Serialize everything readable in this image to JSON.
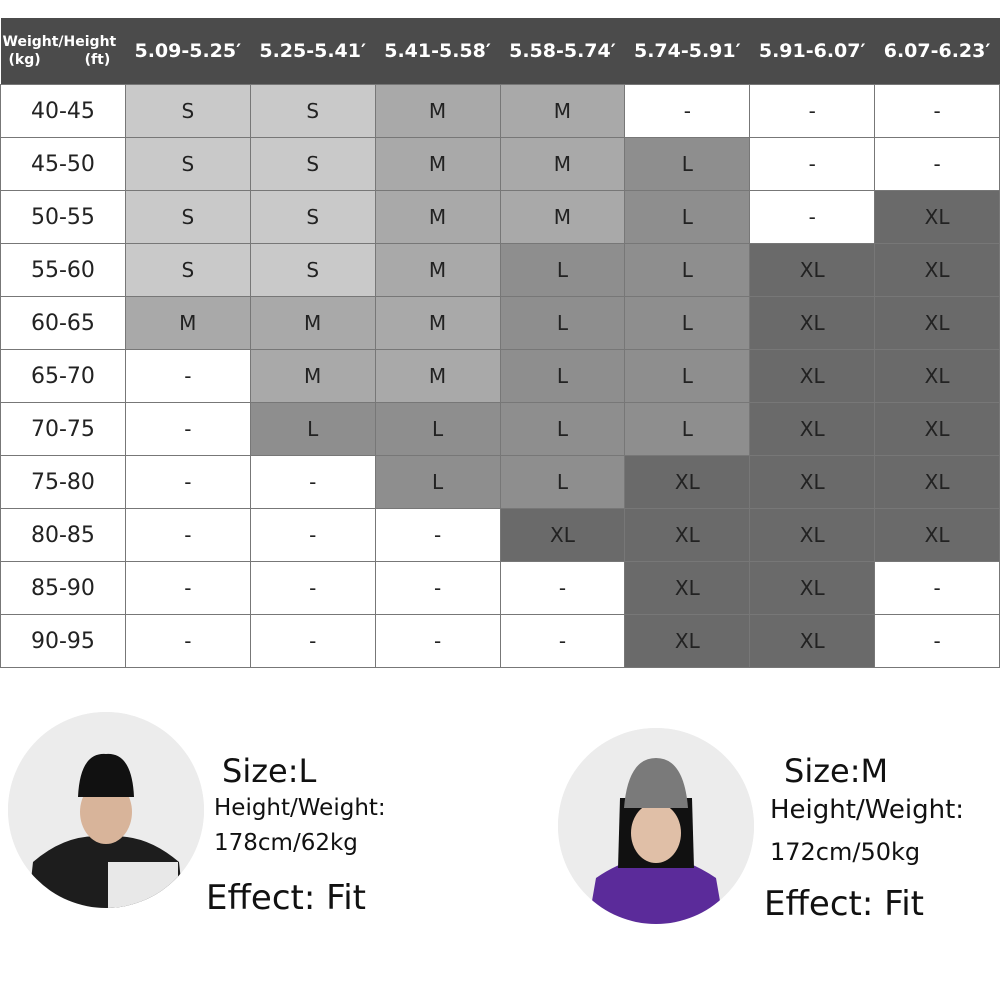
{
  "table": {
    "corner_top": "Weight/Height",
    "corner_kg": "(kg)",
    "corner_ft": "(ft)",
    "heights": [
      "5.09-5.25′",
      "5.25-5.41′",
      "5.41-5.58′",
      "5.58-5.74′",
      "5.74-5.91′",
      "5.91-6.07′",
      "6.07-6.23′"
    ],
    "rows": [
      {
        "weight": "40-45",
        "sizes": [
          "S",
          "S",
          "M",
          "M",
          "-",
          "-",
          "-"
        ]
      },
      {
        "weight": "45-50",
        "sizes": [
          "S",
          "S",
          "M",
          "M",
          "L",
          "-",
          "-"
        ]
      },
      {
        "weight": "50-55",
        "sizes": [
          "S",
          "S",
          "M",
          "M",
          "L",
          "-",
          "XL"
        ]
      },
      {
        "weight": "55-60",
        "sizes": [
          "S",
          "S",
          "M",
          "L",
          "L",
          "XL",
          "XL"
        ]
      },
      {
        "weight": "60-65",
        "sizes": [
          "M",
          "M",
          "M",
          "L",
          "L",
          "XL",
          "XL"
        ]
      },
      {
        "weight": "65-70",
        "sizes": [
          "-",
          "M",
          "M",
          "L",
          "L",
          "XL",
          "XL"
        ]
      },
      {
        "weight": "70-75",
        "sizes": [
          "-",
          "L",
          "L",
          "L",
          "L",
          "XL",
          "XL"
        ]
      },
      {
        "weight": "75-80",
        "sizes": [
          "-",
          "-",
          "L",
          "L",
          "XL",
          "XL",
          "XL"
        ]
      },
      {
        "weight": "80-85",
        "sizes": [
          "-",
          "-",
          "-",
          "XL",
          "XL",
          "XL",
          "XL"
        ]
      },
      {
        "weight": "85-90",
        "sizes": [
          "-",
          "-",
          "-",
          "-",
          "XL",
          "XL",
          "-"
        ]
      },
      {
        "weight": "90-95",
        "sizes": [
          "-",
          "-",
          "-",
          "-",
          "XL",
          "XL",
          "-"
        ]
      }
    ],
    "size_colors": {
      "S": "#c9c9c9",
      "M": "#a9a9a9",
      "L": "#8e8e8e",
      "XL": "#6a6a6a",
      "-": "#ffffff"
    }
  },
  "models": [
    {
      "size": "Size:L",
      "hw_label": "Height/Weight:",
      "hw_value": "178cm/62kg",
      "effect": "Effect: Fit"
    },
    {
      "size": "Size:M",
      "hw_label": "Height/Weight:",
      "hw_value": "172cm/50kg",
      "effect": "Effect: Fit"
    }
  ]
}
